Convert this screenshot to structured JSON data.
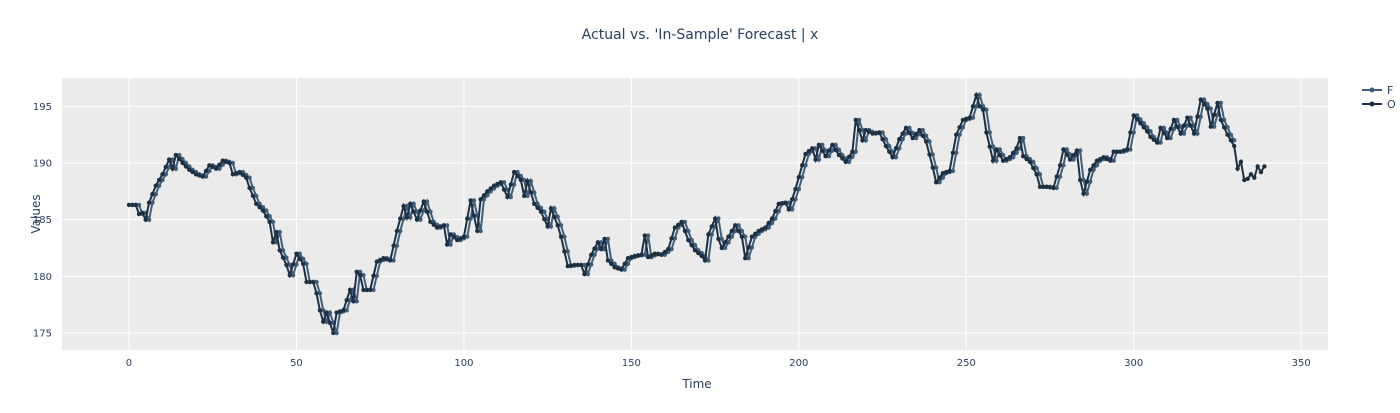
{
  "chart_data": {
    "type": "line",
    "title": "Actual vs. 'In-Sample' Forecast | x",
    "xlabel": "Time",
    "ylabel": "Values",
    "xlim": [
      -20,
      358
    ],
    "ylim": [
      173.5,
      197.5
    ],
    "x_ticks": [
      0,
      50,
      100,
      150,
      200,
      250,
      300,
      350
    ],
    "y_ticks": [
      175,
      180,
      185,
      190,
      195
    ],
    "grid": true,
    "legend_position": "top-right",
    "series": [
      {
        "name": "F",
        "color": "#3d5f7d",
        "marker": "circle",
        "shift": 1,
        "x_range": [
          1,
          330
        ]
      },
      {
        "name": "O",
        "color": "#1e3040",
        "marker": "circle",
        "x_range": [
          0,
          339
        ]
      }
    ],
    "anchors": [
      [
        0,
        186.3
      ],
      [
        2,
        186.3
      ],
      [
        3,
        185.5
      ],
      [
        4,
        185.6
      ],
      [
        5,
        185.0
      ],
      [
        6,
        186.5
      ],
      [
        8,
        188.0
      ],
      [
        10,
        189.0
      ],
      [
        12,
        190.3
      ],
      [
        13,
        189.5
      ],
      [
        14,
        190.7
      ],
      [
        16,
        190.0
      ],
      [
        18,
        189.4
      ],
      [
        20,
        189.0
      ],
      [
        22,
        188.8
      ],
      [
        24,
        189.8
      ],
      [
        26,
        189.5
      ],
      [
        28,
        190.2
      ],
      [
        30,
        190.0
      ],
      [
        31,
        189.0
      ],
      [
        33,
        189.2
      ],
      [
        35,
        188.7
      ],
      [
        36,
        187.8
      ],
      [
        38,
        186.4
      ],
      [
        40,
        185.8
      ],
      [
        42,
        184.8
      ],
      [
        43,
        183.0
      ],
      [
        44,
        183.9
      ],
      [
        45,
        182.3
      ],
      [
        47,
        181.0
      ],
      [
        48,
        180.1
      ],
      [
        50,
        182.0
      ],
      [
        52,
        181.1
      ],
      [
        53,
        179.5
      ],
      [
        55,
        179.5
      ],
      [
        56,
        178.5
      ],
      [
        57,
        177.0
      ],
      [
        58,
        176.0
      ],
      [
        59,
        176.8
      ],
      [
        61,
        175.0
      ],
      [
        62,
        176.8
      ],
      [
        64,
        177.0
      ],
      [
        66,
        178.8
      ],
      [
        67,
        177.8
      ],
      [
        68,
        180.4
      ],
      [
        69,
        180.1
      ],
      [
        70,
        178.8
      ],
      [
        72,
        178.8
      ],
      [
        74,
        181.3
      ],
      [
        76,
        181.6
      ],
      [
        78,
        181.4
      ],
      [
        80,
        184.0
      ],
      [
        82,
        186.2
      ],
      [
        83,
        185.2
      ],
      [
        84,
        186.4
      ],
      [
        86,
        185.0
      ],
      [
        88,
        186.6
      ],
      [
        90,
        184.8
      ],
      [
        92,
        184.3
      ],
      [
        94,
        184.5
      ],
      [
        95,
        182.8
      ],
      [
        96,
        183.7
      ],
      [
        98,
        183.2
      ],
      [
        100,
        183.5
      ],
      [
        102,
        186.7
      ],
      [
        104,
        184.0
      ],
      [
        105,
        186.8
      ],
      [
        107,
        187.5
      ],
      [
        109,
        188.0
      ],
      [
        111,
        188.3
      ],
      [
        113,
        187.0
      ],
      [
        115,
        189.2
      ],
      [
        117,
        188.5
      ],
      [
        118,
        187.1
      ],
      [
        119,
        188.4
      ],
      [
        121,
        186.4
      ],
      [
        123,
        185.7
      ],
      [
        125,
        184.4
      ],
      [
        126,
        186.0
      ],
      [
        128,
        184.5
      ],
      [
        129,
        183.5
      ],
      [
        131,
        180.9
      ],
      [
        133,
        181.0
      ],
      [
        135,
        181.0
      ],
      [
        136,
        180.2
      ],
      [
        138,
        181.9
      ],
      [
        140,
        183.0
      ],
      [
        141,
        182.4
      ],
      [
        142,
        183.3
      ],
      [
        143,
        181.4
      ],
      [
        145,
        180.8
      ],
      [
        147,
        180.6
      ],
      [
        149,
        181.6
      ],
      [
        151,
        181.8
      ],
      [
        153,
        181.9
      ],
      [
        154,
        183.6
      ],
      [
        155,
        181.7
      ],
      [
        157,
        182.0
      ],
      [
        159,
        181.9
      ],
      [
        161,
        182.4
      ],
      [
        163,
        184.3
      ],
      [
        165,
        184.8
      ],
      [
        167,
        183.2
      ],
      [
        169,
        182.3
      ],
      [
        171,
        181.8
      ],
      [
        172,
        181.4
      ],
      [
        173,
        183.7
      ],
      [
        175,
        185.1
      ],
      [
        176,
        183.3
      ],
      [
        177,
        182.5
      ],
      [
        179,
        183.5
      ],
      [
        181,
        184.5
      ],
      [
        183,
        183.5
      ],
      [
        184,
        181.6
      ],
      [
        186,
        183.5
      ],
      [
        188,
        184.0
      ],
      [
        190,
        184.3
      ],
      [
        192,
        185.1
      ],
      [
        194,
        186.4
      ],
      [
        196,
        186.5
      ],
      [
        197,
        185.9
      ],
      [
        199,
        187.7
      ],
      [
        201,
        189.8
      ],
      [
        202,
        190.8
      ],
      [
        204,
        191.3
      ],
      [
        205,
        190.3
      ],
      [
        206,
        191.6
      ],
      [
        208,
        190.6
      ],
      [
        210,
        191.6
      ],
      [
        212,
        190.7
      ],
      [
        214,
        190.1
      ],
      [
        216,
        191.0
      ],
      [
        217,
        193.8
      ],
      [
        219,
        192.0
      ],
      [
        220,
        192.9
      ],
      [
        222,
        192.6
      ],
      [
        224,
        192.7
      ],
      [
        226,
        191.5
      ],
      [
        228,
        190.5
      ],
      [
        230,
        192.1
      ],
      [
        232,
        193.1
      ],
      [
        234,
        192.2
      ],
      [
        236,
        192.9
      ],
      [
        238,
        191.9
      ],
      [
        240,
        189.6
      ],
      [
        241,
        188.3
      ],
      [
        243,
        189.1
      ],
      [
        245,
        189.3
      ],
      [
        247,
        192.5
      ],
      [
        249,
        193.8
      ],
      [
        251,
        194.0
      ],
      [
        253,
        196.0
      ],
      [
        254,
        195.0
      ],
      [
        255,
        194.7
      ],
      [
        256,
        192.7
      ],
      [
        258,
        190.2
      ],
      [
        259,
        191.2
      ],
      [
        261,
        190.2
      ],
      [
        263,
        190.5
      ],
      [
        265,
        191.3
      ],
      [
        266,
        192.2
      ],
      [
        267,
        190.6
      ],
      [
        269,
        190.1
      ],
      [
        271,
        189.0
      ],
      [
        272,
        187.9
      ],
      [
        274,
        187.9
      ],
      [
        276,
        187.8
      ],
      [
        278,
        189.8
      ],
      [
        279,
        191.2
      ],
      [
        281,
        190.3
      ],
      [
        283,
        191.1
      ],
      [
        284,
        188.5
      ],
      [
        285,
        187.3
      ],
      [
        287,
        189.4
      ],
      [
        289,
        190.2
      ],
      [
        291,
        190.5
      ],
      [
        293,
        190.2
      ],
      [
        294,
        191.0
      ],
      [
        296,
        191.0
      ],
      [
        298,
        191.2
      ],
      [
        300,
        194.2
      ],
      [
        302,
        193.5
      ],
      [
        304,
        192.8
      ],
      [
        305,
        192.3
      ],
      [
        307,
        191.8
      ],
      [
        308,
        193.1
      ],
      [
        310,
        192.2
      ],
      [
        312,
        193.8
      ],
      [
        314,
        192.6
      ],
      [
        316,
        194.0
      ],
      [
        318,
        192.6
      ],
      [
        320,
        195.6
      ],
      [
        322,
        194.8
      ],
      [
        323,
        193.2
      ],
      [
        325,
        195.3
      ],
      [
        326,
        193.8
      ],
      [
        328,
        192.5
      ],
      [
        330,
        191.5
      ],
      [
        331,
        189.5
      ],
      [
        332,
        190.1
      ],
      [
        333,
        188.5
      ],
      [
        334,
        188.6
      ],
      [
        335,
        189.0
      ],
      [
        336,
        188.7
      ],
      [
        337,
        189.7
      ],
      [
        338,
        189.2
      ],
      [
        339,
        189.7
      ]
    ]
  }
}
